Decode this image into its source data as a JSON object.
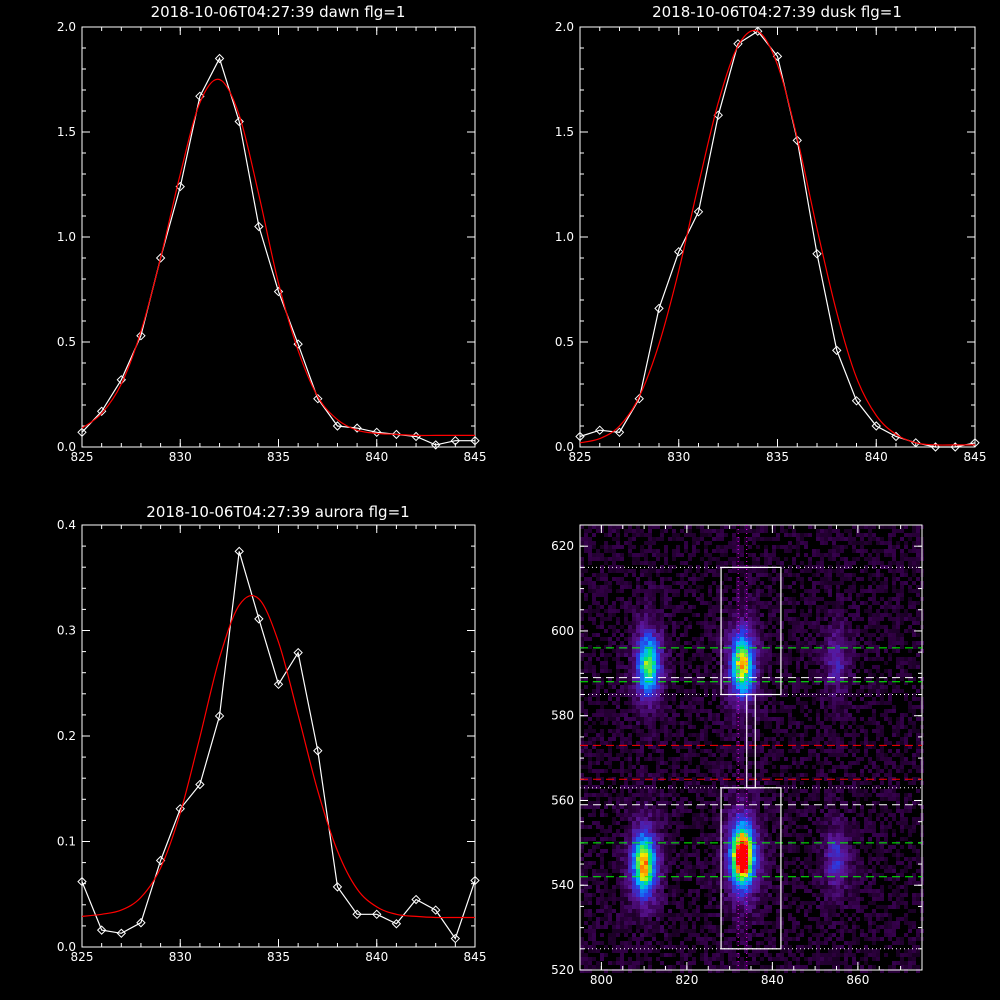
{
  "chart_data": [
    {
      "type": "line",
      "title": "2018-10-06T04:27:39 dawn flg=1",
      "xlabel": "",
      "ylabel": "",
      "xlim": [
        825,
        845
      ],
      "ylim": [
        0,
        2.0
      ],
      "xticks": [
        "825",
        "830",
        "835",
        "840",
        "845"
      ],
      "yticks": [
        "0.0",
        "0.5",
        "1.0",
        "1.5",
        "2.0"
      ],
      "grid": false,
      "colors": {
        "data": "#ffffff",
        "fit": "#ff0000"
      },
      "series": [
        {
          "role": "data",
          "marker": "diamond",
          "x": [
            825,
            826,
            827,
            828,
            829,
            830,
            831,
            832,
            833,
            834,
            835,
            836,
            837,
            838,
            839,
            840,
            841,
            842,
            843,
            844,
            845
          ],
          "y": [
            0.07,
            0.17,
            0.32,
            0.53,
            0.9,
            1.24,
            1.67,
            1.85,
            1.55,
            1.05,
            0.74,
            0.49,
            0.23,
            0.1,
            0.09,
            0.07,
            0.06,
            0.05,
            0.01,
            0.03,
            0.03
          ]
        },
        {
          "role": "fit",
          "x": [
            825,
            826,
            827,
            828,
            829,
            830,
            831,
            832,
            833,
            834,
            835,
            836,
            837,
            838,
            839,
            840,
            841,
            842,
            843,
            844,
            845
          ],
          "y": [
            0.09,
            0.16,
            0.3,
            0.55,
            0.9,
            1.3,
            1.64,
            1.75,
            1.58,
            1.2,
            0.78,
            0.46,
            0.24,
            0.13,
            0.08,
            0.065,
            0.06,
            0.055,
            0.055,
            0.055,
            0.055
          ]
        }
      ]
    },
    {
      "type": "line",
      "title": "2018-10-06T04:27:39 dusk flg=1",
      "xlabel": "",
      "ylabel": "",
      "xlim": [
        825,
        845
      ],
      "ylim": [
        0,
        2.0
      ],
      "xticks": [
        "825",
        "830",
        "835",
        "840",
        "845"
      ],
      "yticks": [
        "0.0",
        "0.5",
        "1.0",
        "1.5",
        "2.0"
      ],
      "grid": false,
      "colors": {
        "data": "#ffffff",
        "fit": "#ff0000"
      },
      "series": [
        {
          "role": "data",
          "marker": "diamond",
          "x": [
            825,
            826,
            827,
            828,
            829,
            830,
            831,
            832,
            833,
            834,
            835,
            836,
            837,
            838,
            839,
            840,
            841,
            842,
            843,
            844,
            845
          ],
          "y": [
            0.05,
            0.08,
            0.07,
            0.23,
            0.66,
            0.93,
            1.12,
            1.58,
            1.92,
            1.98,
            1.86,
            1.46,
            0.92,
            0.46,
            0.22,
            0.1,
            0.05,
            0.02,
            0.0,
            0.0,
            0.02
          ]
        },
        {
          "role": "fit",
          "x": [
            825,
            826,
            827,
            828,
            829,
            830,
            831,
            832,
            833,
            834,
            835,
            836,
            837,
            838,
            839,
            840,
            841,
            842,
            843,
            844,
            845
          ],
          "y": [
            0.02,
            0.04,
            0.1,
            0.24,
            0.49,
            0.84,
            1.25,
            1.64,
            1.91,
            1.98,
            1.82,
            1.47,
            1.04,
            0.64,
            0.33,
            0.15,
            0.06,
            0.02,
            0.01,
            0.01,
            0.01
          ]
        }
      ]
    },
    {
      "type": "line",
      "title": "2018-10-06T04:27:39 aurora flg=1",
      "xlabel": "",
      "ylabel": "",
      "xlim": [
        825,
        845
      ],
      "ylim": [
        0,
        0.4
      ],
      "xticks": [
        "825",
        "830",
        "835",
        "840",
        "845"
      ],
      "yticks": [
        "0.0",
        "0.1",
        "0.2",
        "0.3",
        "0.4"
      ],
      "grid": false,
      "colors": {
        "data": "#ffffff",
        "fit": "#ff0000"
      },
      "series": [
        {
          "role": "data",
          "marker": "diamond",
          "x": [
            825,
            826,
            827,
            828,
            829,
            830,
            831,
            832,
            833,
            834,
            835,
            836,
            837,
            838,
            839,
            840,
            841,
            842,
            843,
            844,
            845
          ],
          "y": [
            0.062,
            0.016,
            0.013,
            0.023,
            0.082,
            0.131,
            0.154,
            0.219,
            0.375,
            0.311,
            0.249,
            0.279,
            0.186,
            0.057,
            0.031,
            0.031,
            0.022,
            0.045,
            0.035,
            0.008,
            0.063
          ]
        },
        {
          "role": "fit",
          "x": [
            825,
            826,
            827,
            828,
            829,
            830,
            831,
            832,
            833,
            834,
            835,
            836,
            837,
            838,
            839,
            840,
            841,
            842,
            843,
            844,
            845
          ],
          "y": [
            0.029,
            0.031,
            0.035,
            0.047,
            0.075,
            0.127,
            0.199,
            0.274,
            0.324,
            0.33,
            0.289,
            0.22,
            0.148,
            0.091,
            0.055,
            0.038,
            0.031,
            0.029,
            0.028,
            0.028,
            0.028
          ]
        }
      ]
    },
    {
      "type": "heatmap",
      "title": "",
      "xlabel": "",
      "ylabel": "",
      "xlim": [
        795,
        875
      ],
      "ylim": [
        520,
        625
      ],
      "xticks": [
        "800",
        "820",
        "840",
        "860"
      ],
      "yticks": [
        "520",
        "540",
        "560",
        "580",
        "600",
        "620"
      ],
      "grid": false,
      "colors": {
        "background": "#000000",
        "box": "#ffffff",
        "green": "#00ff00",
        "red": "#ff0000",
        "magenta": "#ff00ff"
      },
      "hotspots": [
        {
          "x": 810,
          "y": 545,
          "intensity": 0.75
        },
        {
          "x": 811,
          "y": 592,
          "intensity": 0.6
        },
        {
          "x": 833,
          "y": 547,
          "intensity": 1.0
        },
        {
          "x": 833,
          "y": 592,
          "intensity": 0.7
        },
        {
          "x": 855,
          "y": 546,
          "intensity": 0.25
        },
        {
          "x": 855,
          "y": 593,
          "intensity": 0.2
        }
      ],
      "boxes": [
        {
          "x0": 828,
          "x1": 842,
          "y0": 585,
          "y1": 615
        },
        {
          "x0": 828,
          "x1": 842,
          "y0": 525,
          "y1": 563
        },
        {
          "x0": 834,
          "x1": 836,
          "y0": 563,
          "y1": 585
        }
      ],
      "hlines_white_dotted": [
        615,
        585,
        563,
        525
      ],
      "hlines_green_dashed": [
        596,
        588,
        550,
        542
      ],
      "hlines_white_dashed": [
        589,
        559
      ],
      "hlines_red_dashed": [
        573,
        565
      ],
      "vlines_magenta_dotted": [
        832,
        834
      ]
    }
  ]
}
